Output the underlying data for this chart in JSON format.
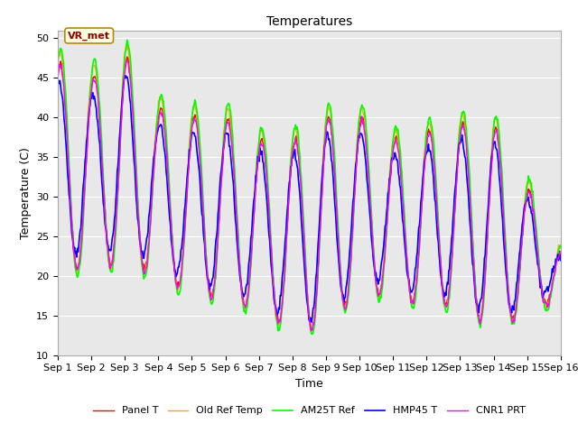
{
  "title": "Temperatures",
  "xlabel": "Time",
  "ylabel": "Temperature (C)",
  "ylim": [
    10,
    51
  ],
  "yticks": [
    10,
    15,
    20,
    25,
    30,
    35,
    40,
    45,
    50
  ],
  "xtick_labels": [
    "Sep 1",
    "Sep 2",
    "Sep 3",
    "Sep 4",
    "Sep 5",
    "Sep 6",
    "Sep 7",
    "Sep 8",
    "Sep 9",
    "Sep 10",
    "Sep 11",
    "Sep 12",
    "Sep 13",
    "Sep 14",
    "Sep 15",
    "Sep 16"
  ],
  "series_colors": [
    "red",
    "orange",
    "lime",
    "blue",
    "magenta"
  ],
  "series_labels": [
    "Panel T",
    "Old Ref Temp",
    "AM25T Ref",
    "HMP45 T",
    "CNR1 PRT"
  ],
  "background_color": "#e8e8e8",
  "annotation_text": "VR_met",
  "title_fontsize": 10,
  "axis_fontsize": 9,
  "tick_fontsize": 8
}
